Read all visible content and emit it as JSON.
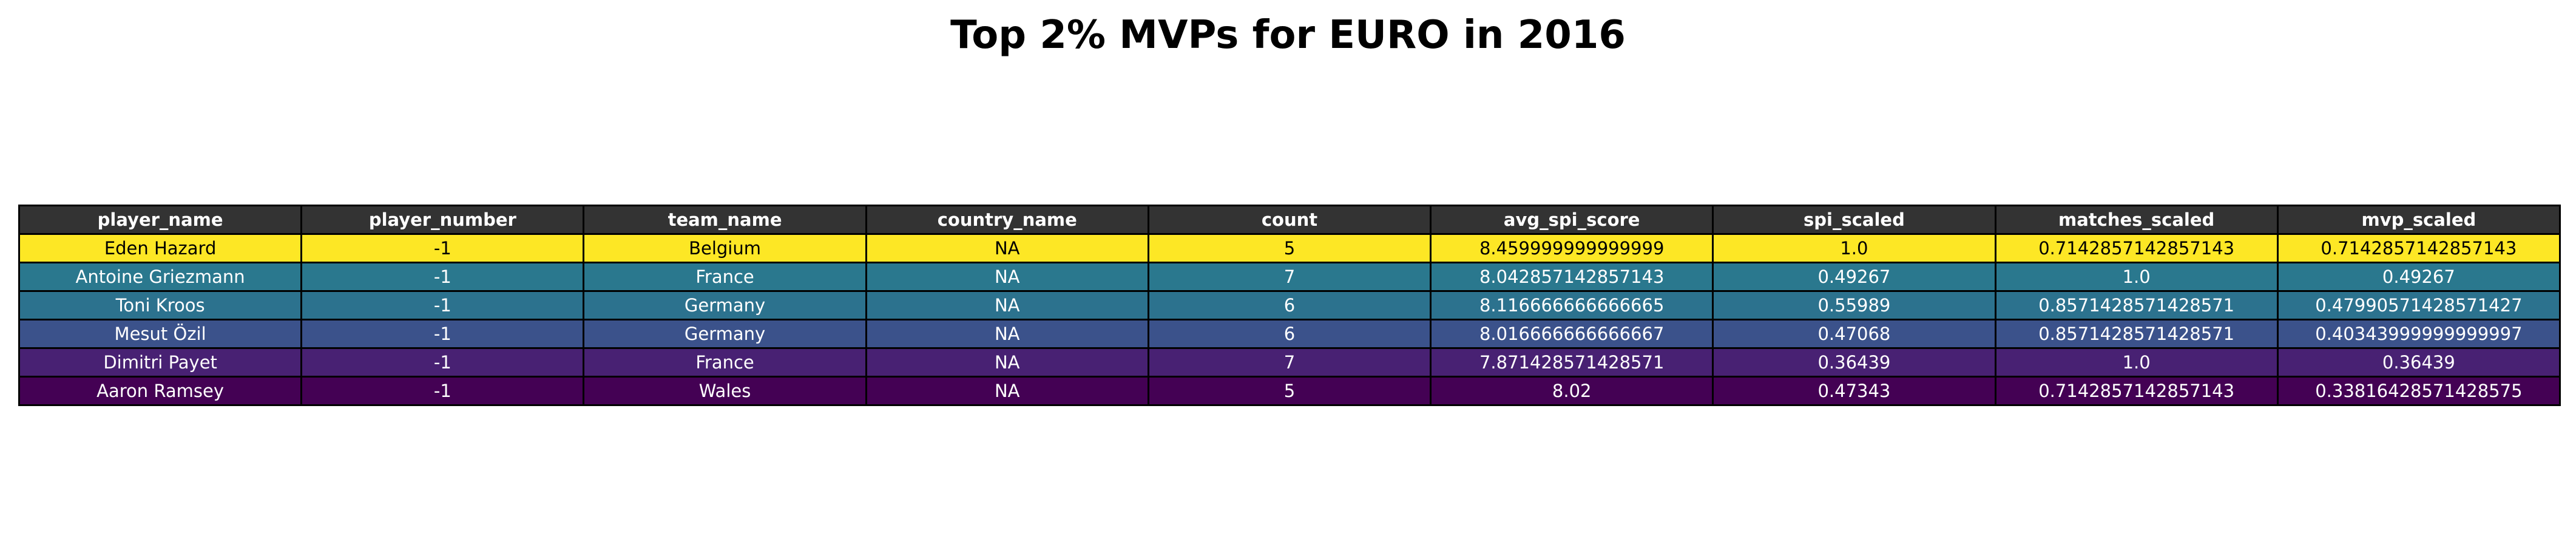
{
  "chart_data": {
    "type": "table",
    "title": "Top 2% MVPs for EURO in 2016",
    "header_color": "#333333",
    "columns": [
      "player_name",
      "player_number",
      "team_name",
      "country_name",
      "count",
      "avg_spi_score",
      "spi_scaled",
      "matches_scaled",
      "mvp_scaled"
    ],
    "rows": [
      {
        "cells": [
          "Eden Hazard",
          "-1",
          "Belgium",
          "NA",
          "5",
          "8.459999999999999",
          "1.0",
          "0.7142857142857143",
          "0.7142857142857143"
        ],
        "bg": "#fde725",
        "fg": "#000000"
      },
      {
        "cells": [
          "Antoine Griezmann",
          "-1",
          "France",
          "NA",
          "7",
          "8.042857142857143",
          "0.49267",
          "1.0",
          "0.49267"
        ],
        "bg": "#2a788e",
        "fg": "#ffffff"
      },
      {
        "cells": [
          "Toni Kroos",
          "-1",
          "Germany",
          "NA",
          "6",
          "8.116666666666665",
          "0.55989",
          "0.8571428571428571",
          "0.47990571428571427"
        ],
        "bg": "#2c728e",
        "fg": "#ffffff"
      },
      {
        "cells": [
          "Mesut Özil",
          "-1",
          "Germany",
          "NA",
          "6",
          "8.016666666666667",
          "0.47068",
          "0.8571428571428571",
          "0.40343999999999997"
        ],
        "bg": "#3b528b",
        "fg": "#ffffff"
      },
      {
        "cells": [
          "Dimitri Payet",
          "-1",
          "France",
          "NA",
          "7",
          "7.871428571428571",
          "0.36439",
          "1.0",
          "0.36439"
        ],
        "bg": "#482173",
        "fg": "#ffffff"
      },
      {
        "cells": [
          "Aaron Ramsey",
          "-1",
          "Wales",
          "NA",
          "5",
          "8.02",
          "0.47343",
          "0.7142857142857143",
          "0.33816428571428575"
        ],
        "bg": "#440154",
        "fg": "#ffffff"
      }
    ]
  }
}
